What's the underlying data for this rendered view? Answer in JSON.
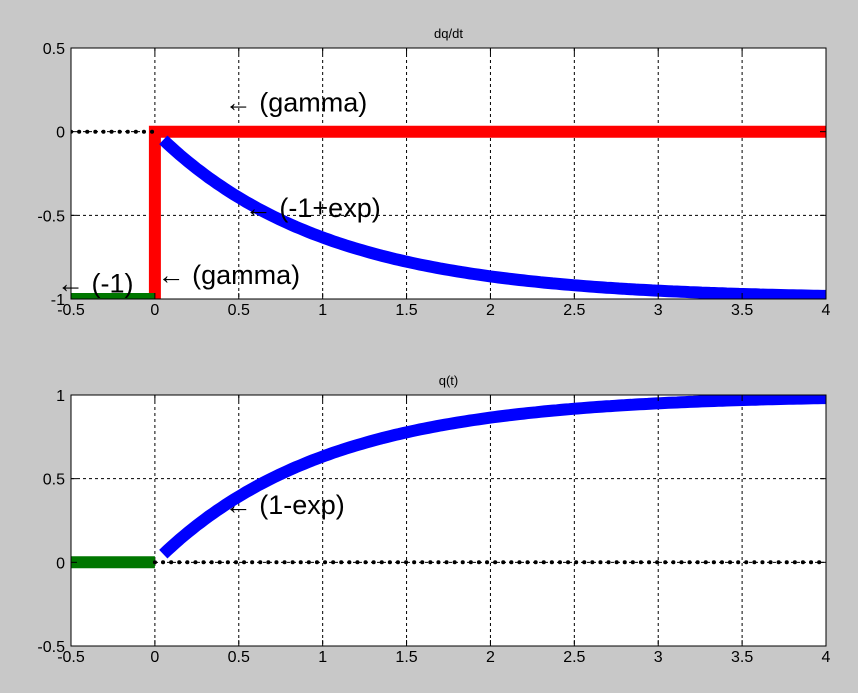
{
  "colors": {
    "figure_background": "#c8c8c8",
    "axes_background": "#ffffff",
    "gamma": "#ff0000",
    "exponential": "#0000ff",
    "negative_time": "#007700",
    "zero_dots": "#000000"
  },
  "chart_data": [
    {
      "type": "line",
      "title": "dq/dt",
      "xlim": [
        -0.5,
        4
      ],
      "ylim": [
        -1,
        0.5
      ],
      "xticks": [
        "-0.5",
        "0",
        "0.5",
        "1",
        "1.5",
        "2",
        "2.5",
        "3",
        "3.5",
        "4"
      ],
      "yticks": [
        "-1",
        "-0.5",
        "0",
        "0.5"
      ],
      "grid": true,
      "series": [
        {
          "role": "gamma-step",
          "color": "#ff0000",
          "style": "solid-thick",
          "x": [
            0,
            0,
            4
          ],
          "y": [
            -1,
            0,
            0
          ]
        },
        {
          "role": "exp-decay",
          "color": "#0000ff",
          "style": "solid-thick",
          "function": "-1+exp(-t)",
          "x_range": [
            0.05,
            4
          ]
        },
        {
          "role": "negative-time",
          "color": "#007700",
          "style": "solid-thick",
          "x": [
            -0.5,
            0
          ],
          "y": [
            -1,
            -1
          ]
        },
        {
          "role": "zero-dots",
          "color": "#000000",
          "style": "dotted",
          "x": [
            -0.5,
            0
          ],
          "y": [
            0,
            0
          ]
        }
      ],
      "annotations": [
        {
          "text": "← (gamma)",
          "x": 0.5,
          "y": 0.18
        },
        {
          "text": "← (-1+exp)",
          "x": 0.62,
          "y": -0.45
        },
        {
          "text": "← (gamma)",
          "x": 0.1,
          "y": -0.85
        },
        {
          "text": "← (-1)",
          "x": -0.5,
          "y": -0.9
        }
      ]
    },
    {
      "type": "line",
      "title": "q(t)",
      "xlim": [
        -0.5,
        4
      ],
      "ylim": [
        -0.5,
        1
      ],
      "xticks": [
        "-0.5",
        "0",
        "0.5",
        "1",
        "1.5",
        "2",
        "2.5",
        "3",
        "3.5",
        "4"
      ],
      "yticks": [
        "-0.5",
        "0",
        "0.5",
        "1"
      ],
      "grid": true,
      "series": [
        {
          "role": "exp-rise",
          "color": "#0000ff",
          "style": "solid-thick",
          "function": "1-exp(-t)",
          "x_range": [
            0.05,
            4
          ]
        },
        {
          "role": "negative-time",
          "color": "#007700",
          "style": "solid-thick",
          "x": [
            -0.5,
            0
          ],
          "y": [
            0,
            0
          ]
        },
        {
          "role": "zero-dots",
          "color": "#000000",
          "style": "dotted",
          "x": [
            0,
            4
          ],
          "y": [
            0,
            0
          ]
        }
      ],
      "annotations": [
        {
          "text": "← (1-exp)",
          "x": 0.5,
          "y": 0.35
        }
      ]
    }
  ]
}
